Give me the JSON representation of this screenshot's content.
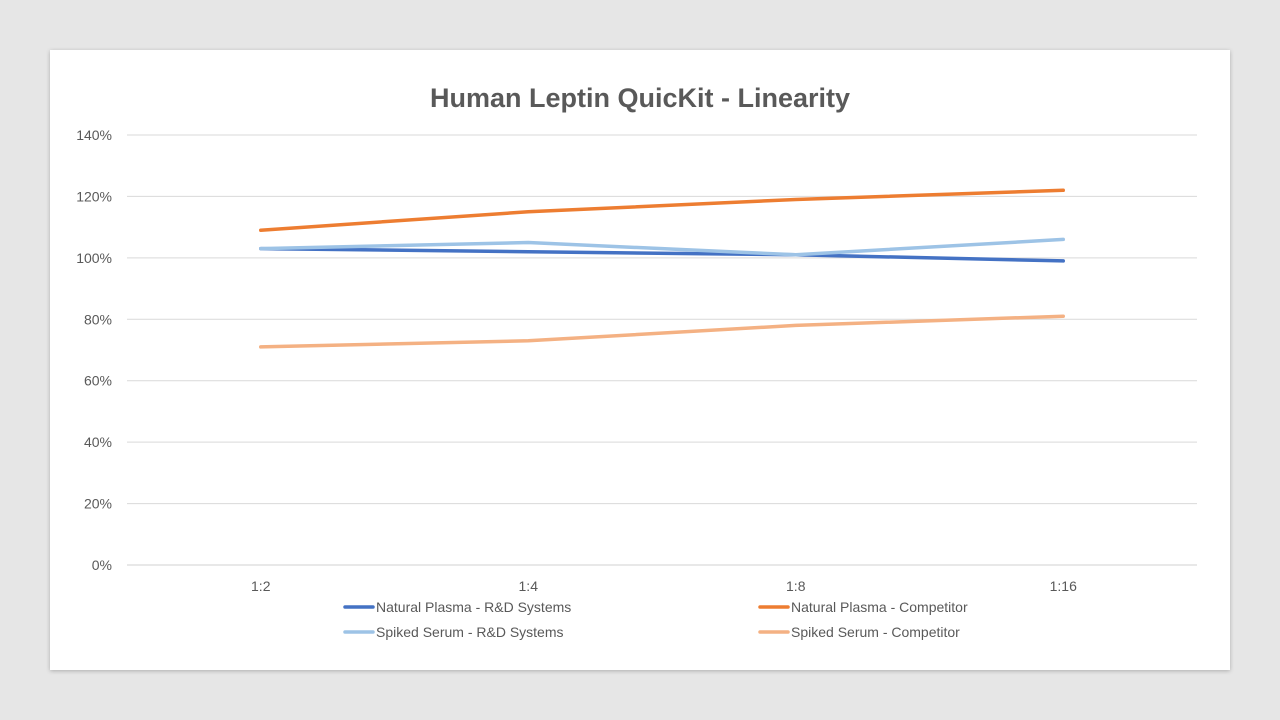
{
  "chart_data": {
    "type": "line",
    "title": "Human Leptin QuicKit - Linearity",
    "xlabel": "",
    "ylabel": "",
    "categories": [
      "1:2",
      "1:4",
      "1:8",
      "1:16"
    ],
    "ylim": [
      0,
      140
    ],
    "yticks": [
      0,
      20,
      40,
      60,
      80,
      100,
      120,
      140
    ],
    "ytick_labels": [
      "0%",
      "20%",
      "40%",
      "60%",
      "80%",
      "100%",
      "120%",
      "140%"
    ],
    "grid": true,
    "legend_position": "bottom",
    "series": [
      {
        "name": "Natural Plasma - R&D Systems",
        "color": "#4472c4",
        "values": [
          103,
          102,
          101,
          99
        ]
      },
      {
        "name": "Natural Plasma - Competitor",
        "color": "#ed7d31",
        "values": [
          109,
          115,
          119,
          122
        ]
      },
      {
        "name": "Spiked Serum - R&D Systems",
        "color": "#9dc3e6",
        "values": [
          103,
          105,
          101,
          106
        ]
      },
      {
        "name": "Spiked Serum - Competitor",
        "color": "#f4b183",
        "values": [
          71,
          73,
          78,
          81
        ]
      }
    ]
  }
}
